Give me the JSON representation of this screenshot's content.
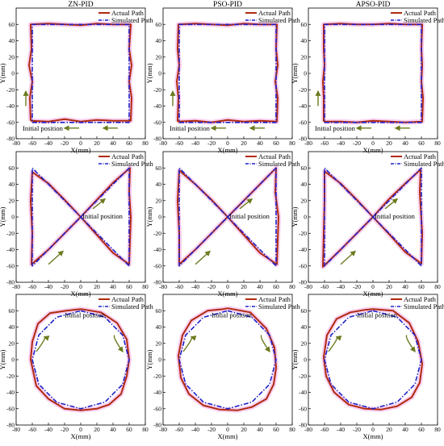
{
  "figure": {
    "column_titles": [
      "ZN-PID",
      "PSO-PID",
      "APSO-PID"
    ]
  },
  "colors": {
    "actual": "#b02a0f",
    "simulated": "#1f23c8",
    "arrow": "#6b7a1e",
    "halo": "#f2a8e6"
  },
  "chart_data": [
    {
      "type": "line",
      "row": 0,
      "col": 0,
      "title": "ZN-PID",
      "shape": "square",
      "xlabel": "X(mm)",
      "ylabel": "Y(mm)",
      "xlim": [
        -80,
        80
      ],
      "ylim": [
        -80,
        80
      ],
      "xticks": [
        "-80",
        "-60",
        "-40",
        "-20",
        "0",
        "20",
        "40",
        "60",
        "80"
      ],
      "yticks": [
        "-80",
        "-60",
        "-40",
        "-20",
        "0",
        "20",
        "40",
        "60"
      ],
      "legend": [
        "Actual Path",
        "Simulated Path"
      ],
      "legend_position": "top-right",
      "annotation": "Initial position",
      "series": [
        {
          "name": "Actual Path",
          "x": [
            -62,
            -40,
            -20,
            0,
            20,
            40,
            62,
            63,
            60,
            63,
            60,
            62,
            40,
            20,
            0,
            -20,
            -40,
            -62,
            -61,
            -64,
            -60,
            -63,
            -62
          ],
          "y": [
            -58,
            -59,
            -56,
            -59,
            -57,
            -58,
            -58,
            -30,
            -10,
            10,
            30,
            60,
            60,
            61,
            59,
            60,
            61,
            60,
            30,
            10,
            -10,
            -30,
            -58
          ]
        },
        {
          "name": "Simulated Path",
          "x": [
            -60,
            60,
            60,
            -60,
            -60
          ],
          "y": [
            -60,
            -60,
            60,
            60,
            -60
          ]
        }
      ]
    },
    {
      "type": "line",
      "row": 0,
      "col": 1,
      "title": "PSO-PID",
      "shape": "square",
      "xlabel": "X(mm)",
      "ylabel": "Y(mm)",
      "xlim": [
        -80,
        80
      ],
      "ylim": [
        -80,
        80
      ],
      "xticks": [
        "-80",
        "-60",
        "-40",
        "-20",
        "0",
        "20",
        "40",
        "60",
        "80"
      ],
      "yticks": [
        "-80",
        "-60",
        "-40",
        "-20",
        "0",
        "20",
        "40",
        "60"
      ],
      "legend": [
        "Actual Path",
        "Simulated Path"
      ],
      "legend_position": "top-right",
      "annotation": "Initial position",
      "series": [
        {
          "name": "Actual Path",
          "x": [
            -62,
            -40,
            -20,
            0,
            20,
            40,
            61,
            62,
            59,
            62,
            60,
            61,
            40,
            20,
            0,
            -20,
            -40,
            -61,
            -62,
            -60,
            -63,
            -61,
            -62
          ],
          "y": [
            -59,
            -58,
            -60,
            -57,
            -59,
            -58,
            -59,
            -30,
            -10,
            10,
            30,
            60,
            60,
            61,
            59,
            60,
            61,
            60,
            30,
            10,
            -10,
            -30,
            -59
          ]
        },
        {
          "name": "Simulated Path",
          "x": [
            -60,
            60,
            60,
            -60,
            -60
          ],
          "y": [
            -60,
            -60,
            60,
            60,
            -60
          ]
        }
      ]
    },
    {
      "type": "line",
      "row": 0,
      "col": 2,
      "title": "APSO-PID",
      "shape": "square",
      "xlabel": "X(mm)",
      "ylabel": "Y(mm)",
      "xlim": [
        -80,
        80
      ],
      "ylim": [
        -80,
        80
      ],
      "xticks": [
        "-80",
        "-60",
        "-40",
        "-20",
        "0",
        "20",
        "40",
        "60",
        "80"
      ],
      "yticks": [
        "-80",
        "-60",
        "-40",
        "-20",
        "0",
        "20",
        "40",
        "60"
      ],
      "legend": [
        "Actual Path",
        "Simulated Path"
      ],
      "legend_position": "top-right",
      "annotation": "Initial position",
      "series": [
        {
          "name": "Actual Path",
          "x": [
            -61,
            -40,
            -20,
            0,
            20,
            40,
            61,
            62,
            60,
            61,
            60,
            61,
            40,
            20,
            0,
            -20,
            -40,
            -61,
            -61,
            -60,
            -62,
            -61,
            -61
          ],
          "y": [
            -59,
            -59,
            -60,
            -58,
            -59,
            -60,
            -59,
            -30,
            -10,
            10,
            30,
            60,
            60,
            61,
            60,
            60,
            61,
            60,
            30,
            10,
            -10,
            -30,
            -59
          ]
        },
        {
          "name": "Simulated Path",
          "x": [
            -60,
            60,
            60,
            -60,
            -60
          ],
          "y": [
            -60,
            -60,
            60,
            60,
            -60
          ]
        }
      ]
    },
    {
      "type": "line",
      "row": 1,
      "col": 0,
      "title": "",
      "shape": "bowtie",
      "xlabel": "X(mm)",
      "ylabel": "Y(mm)",
      "xlim": [
        -80,
        80
      ],
      "ylim": [
        -80,
        80
      ],
      "xticks": [
        "-80",
        "-60",
        "-40",
        "-20",
        "0",
        "20",
        "40",
        "60",
        "80"
      ],
      "yticks": [
        "-80",
        "-60",
        "-40",
        "-20",
        "0",
        "20",
        "40",
        "60"
      ],
      "legend": [
        "Actual Path",
        "Simulated Path"
      ],
      "legend_position": "top-right",
      "annotation": "Initial position",
      "series": [
        {
          "name": "Actual Path",
          "x": [
            0,
            20,
            40,
            61,
            60,
            62,
            60,
            40,
            20,
            0,
            -20,
            -40,
            -60,
            -62,
            -60,
            -61,
            -40,
            -20,
            0
          ],
          "y": [
            0,
            21,
            42,
            60,
            30,
            0,
            -58,
            -44,
            -22,
            0,
            21,
            41,
            55,
            20,
            -20,
            -58,
            -40,
            -20,
            0
          ]
        },
        {
          "name": "Simulated Path",
          "x": [
            0,
            60,
            60,
            0,
            -60,
            -60,
            0
          ],
          "y": [
            0,
            60,
            -60,
            0,
            60,
            -60,
            0
          ]
        }
      ]
    },
    {
      "type": "line",
      "row": 1,
      "col": 1,
      "title": "",
      "shape": "bowtie",
      "xlabel": "X(mm)",
      "ylabel": "Y(mm)",
      "xlim": [
        -80,
        80
      ],
      "ylim": [
        -80,
        80
      ],
      "xticks": [
        "-80",
        "-60",
        "-40",
        "-20",
        "0",
        "20",
        "40",
        "60",
        "80"
      ],
      "yticks": [
        "-80",
        "-60",
        "-40",
        "-20",
        "0",
        "20",
        "40",
        "60"
      ],
      "legend": [
        "Actual Path",
        "Simulated Path"
      ],
      "legend_position": "top-right",
      "annotation": "Initial position",
      "series": [
        {
          "name": "Actual Path",
          "x": [
            0,
            20,
            40,
            60,
            59,
            63,
            61,
            40,
            20,
            0,
            -20,
            -40,
            -60,
            -62,
            -60,
            -60,
            -40,
            -20,
            0
          ],
          "y": [
            0,
            20,
            40,
            60,
            30,
            0,
            -58,
            -44,
            -22,
            0,
            21,
            40,
            57,
            20,
            -20,
            -58,
            -40,
            -20,
            0
          ]
        },
        {
          "name": "Simulated Path",
          "x": [
            0,
            60,
            60,
            0,
            -60,
            -60,
            0
          ],
          "y": [
            0,
            60,
            -60,
            0,
            60,
            -60,
            0
          ]
        }
      ]
    },
    {
      "type": "line",
      "row": 1,
      "col": 2,
      "title": "",
      "shape": "bowtie",
      "xlabel": "X(mm)",
      "ylabel": "Y(mm)",
      "xlim": [
        -80,
        80
      ],
      "ylim": [
        -80,
        80
      ],
      "xticks": [
        "-80",
        "-60",
        "-40",
        "-20",
        "0",
        "20",
        "40",
        "60",
        "80"
      ],
      "yticks": [
        "-80",
        "-60",
        "-40",
        "-20",
        "0",
        "20",
        "40",
        "60"
      ],
      "legend": [
        "Actual Path",
        "Simulated Path"
      ],
      "legend_position": "top-right",
      "annotation": "Initial position",
      "series": [
        {
          "name": "Actual Path",
          "x": [
            0,
            20,
            40,
            59,
            58,
            61,
            60,
            40,
            20,
            0,
            -20,
            -40,
            -60,
            -60,
            -61,
            -62,
            -40,
            -20,
            0
          ],
          "y": [
            0,
            22,
            41,
            58,
            30,
            -20,
            -57,
            -43,
            -21,
            0,
            21,
            41,
            56,
            20,
            -20,
            -61,
            -40,
            -20,
            0
          ]
        },
        {
          "name": "Simulated Path",
          "x": [
            0,
            60,
            60,
            0,
            -60,
            -60,
            0
          ],
          "y": [
            0,
            60,
            -60,
            0,
            60,
            -60,
            0
          ]
        }
      ]
    },
    {
      "type": "line",
      "row": 2,
      "col": 0,
      "title": "",
      "shape": "circle",
      "xlabel": "X(mm)",
      "ylabel": "Y(mm)",
      "xlim": [
        -80,
        80
      ],
      "ylim": [
        -80,
        80
      ],
      "xticks": [
        "-80",
        "-60",
        "-40",
        "-20",
        "0",
        "20",
        "40",
        "60",
        "80"
      ],
      "yticks": [
        "-80",
        "-60",
        "-40",
        "-20",
        "0",
        "20",
        "40",
        "60"
      ],
      "legend": [
        "Actual Path",
        "Simulated Path"
      ],
      "legend_position": "top-right",
      "annotation": "Initial position",
      "series": [
        {
          "name": "Actual Path",
          "x": [
            0,
            25,
            45,
            57,
            60,
            57,
            50,
            35,
            20,
            0,
            -20,
            -40,
            -55,
            -62,
            -60,
            -53,
            -38,
            -18,
            0
          ],
          "y": [
            62,
            58,
            45,
            25,
            0,
            -20,
            -42,
            -55,
            -60,
            -62,
            -60,
            -48,
            -32,
            0,
            22,
            44,
            57,
            60,
            62
          ]
        },
        {
          "name": "Simulated Path",
          "x": [
            0,
            30,
            51.96,
            60,
            51.96,
            30,
            0,
            -30,
            -51.96,
            -60,
            -51.96,
            -30,
            0
          ],
          "y": [
            60,
            51.96,
            30,
            0,
            -30,
            -51.96,
            -60,
            -51.96,
            -30,
            0,
            30,
            51.96,
            60
          ]
        }
      ]
    },
    {
      "type": "line",
      "row": 2,
      "col": 1,
      "title": "",
      "shape": "circle",
      "xlabel": "X(mm)",
      "ylabel": "Y(mm)",
      "xlim": [
        -80,
        80
      ],
      "ylim": [
        -80,
        80
      ],
      "xticks": [
        "-80",
        "-60",
        "-40",
        "-20",
        "0",
        "20",
        "40",
        "60",
        "80"
      ],
      "yticks": [
        "-80",
        "-60",
        "-40",
        "-20",
        "0",
        "20",
        "40",
        "60"
      ],
      "legend": [
        "Actual Path",
        "Simulated Path"
      ],
      "legend_position": "top-right",
      "annotation": "Initial position",
      "series": [
        {
          "name": "Actual Path",
          "x": [
            0,
            28,
            48,
            58,
            60,
            57,
            48,
            30,
            12,
            -10,
            -30,
            -48,
            -58,
            -61,
            -56,
            -45,
            -25,
            -5,
            0
          ],
          "y": [
            63,
            58,
            38,
            15,
            -10,
            -30,
            -48,
            -58,
            -62,
            -61,
            -56,
            -42,
            -22,
            5,
            30,
            48,
            60,
            62,
            63
          ]
        },
        {
          "name": "Simulated Path",
          "x": [
            0,
            30,
            51.96,
            60,
            51.96,
            30,
            0,
            -30,
            -51.96,
            -60,
            -51.96,
            -30,
            0
          ],
          "y": [
            60,
            51.96,
            30,
            0,
            -30,
            -51.96,
            -60,
            -51.96,
            -30,
            0,
            30,
            51.96,
            60
          ]
        }
      ]
    },
    {
      "type": "line",
      "row": 2,
      "col": 2,
      "title": "",
      "shape": "circle",
      "xlabel": "X(mm)",
      "ylabel": "Y(mm)",
      "xlim": [
        -80,
        80
      ],
      "ylim": [
        -80,
        80
      ],
      "xticks": [
        "-80",
        "-60",
        "-40",
        "-20",
        "0",
        "20",
        "40",
        "60",
        "80"
      ],
      "yticks": [
        "-80",
        "-60",
        "-40",
        "-20",
        "0",
        "20",
        "40",
        "60"
      ],
      "legend": [
        "Actual Path",
        "Simulated Path"
      ],
      "legend_position": "top-right",
      "annotation": "Initial position",
      "series": [
        {
          "name": "Actual Path",
          "x": [
            0,
            25,
            45,
            56,
            61,
            58,
            48,
            30,
            10,
            -10,
            -30,
            -48,
            -58,
            -61,
            -57,
            -45,
            -28,
            -10,
            0
          ],
          "y": [
            62,
            60,
            45,
            22,
            -5,
            -28,
            -46,
            -57,
            -61,
            -60,
            -55,
            -40,
            -20,
            3,
            30,
            50,
            58,
            61,
            62
          ]
        },
        {
          "name": "Simulated Path",
          "x": [
            0,
            30,
            51.96,
            60,
            51.96,
            30,
            0,
            -30,
            -51.96,
            -60,
            -51.96,
            -30,
            0
          ],
          "y": [
            60,
            51.96,
            30,
            0,
            -30,
            -51.96,
            -60,
            -51.96,
            -30,
            0,
            30,
            51.96,
            60
          ]
        }
      ]
    }
  ]
}
